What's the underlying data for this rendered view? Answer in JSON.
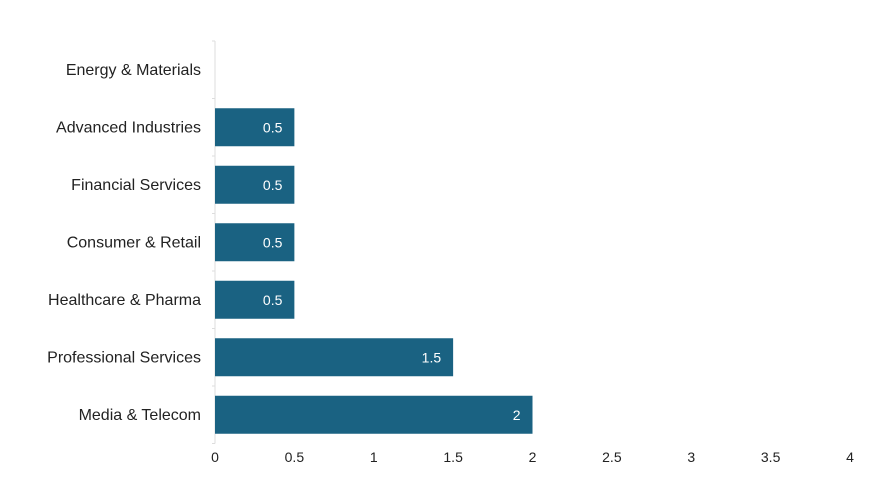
{
  "chart_data": {
    "type": "bar",
    "orientation": "horizontal",
    "title": "",
    "xlabel": "",
    "ylabel": "",
    "categories": [
      "Energy & Materials",
      "Advanced Industries",
      "Financial Services",
      "Consumer & Retail",
      "Healthcare & Pharma",
      "Professional Services",
      "Media & Telecom"
    ],
    "values": [
      0,
      0.5,
      0.5,
      0.5,
      0.5,
      1.5,
      2
    ],
    "data_labels": [
      "",
      "0.5",
      "0.5",
      "0.5",
      "0.5",
      "1.5",
      "2"
    ],
    "xlim": [
      0,
      4
    ],
    "x_ticks": [
      "0",
      "0.5",
      "1",
      "1.5",
      "2",
      "2.5",
      "3",
      "3.5",
      "4"
    ],
    "grid": false,
    "legend": "none",
    "bar_color": "#1a6282",
    "label_color": "#ffffff",
    "axis_color": "#dddddd",
    "text_color": "#222222"
  }
}
